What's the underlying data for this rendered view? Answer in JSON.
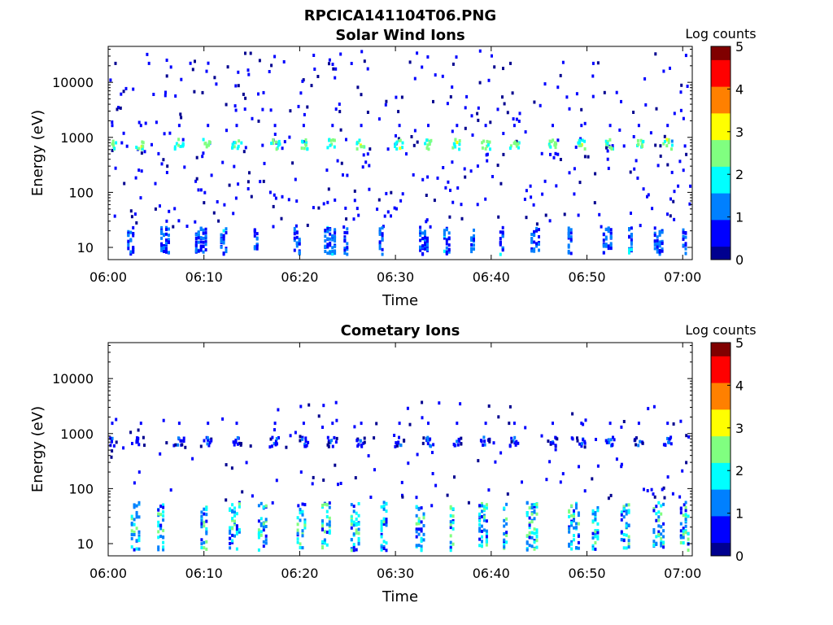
{
  "figure_title": "RPCICA141104T06.PNG",
  "colors": {
    "colormap": [
      "#00008f",
      "#0000ff",
      "#0080ff",
      "#00ffff",
      "#80ff80",
      "#ffff00",
      "#ff8000",
      "#ff0000",
      "#800000"
    ],
    "axes": "#000000",
    "background": "#ffffff"
  },
  "chart_data": [
    {
      "type": "heatmap",
      "title": "Solar Wind Ions",
      "xlabel": "Time",
      "ylabel": "Energy (eV)",
      "x_range": [
        "06:00",
        "07:01"
      ],
      "y_range": [
        6,
        45000
      ],
      "y_scale": "log",
      "x_ticks": [
        "06:00",
        "06:10",
        "06:20",
        "06:30",
        "06:40",
        "06:50",
        "07:00"
      ],
      "y_ticks": [
        "10",
        "100",
        "1000",
        "10000"
      ],
      "colorbar": {
        "label": "Log counts",
        "range": [
          0,
          5
        ],
        "ticks": [
          "0",
          "1",
          "2",
          "3",
          "4",
          "5"
        ]
      },
      "grid": false,
      "features": {
        "main_peak_energy_eV": 800,
        "main_peak_times": [
          "06:00",
          "06:03",
          "06:07",
          "06:10",
          "06:13",
          "06:17",
          "06:20",
          "06:23",
          "06:26",
          "06:30",
          "06:33",
          "06:36",
          "06:39",
          "06:42",
          "06:46",
          "06:49",
          "06:52",
          "06:55",
          "06:58"
        ],
        "main_peak_log_counts": 3.0,
        "low_energy_band_eV": [
          8,
          25
        ],
        "low_energy_log_counts": 1.0,
        "sparse_background_log_counts": 0.1
      }
    },
    {
      "type": "heatmap",
      "title": "Cometary Ions",
      "xlabel": "Time",
      "ylabel": "Energy (eV)",
      "x_range": [
        "06:00",
        "07:01"
      ],
      "y_range": [
        6,
        45000
      ],
      "y_scale": "log",
      "x_ticks": [
        "06:00",
        "06:10",
        "06:20",
        "06:30",
        "06:40",
        "06:50",
        "07:00"
      ],
      "y_ticks": [
        "10",
        "100",
        "1000",
        "10000"
      ],
      "colorbar": {
        "label": "Log counts",
        "range": [
          0,
          5
        ],
        "ticks": [
          "0",
          "1",
          "2",
          "3",
          "4",
          "5"
        ]
      },
      "grid": false,
      "features": {
        "main_peak_energy_eV": 750,
        "main_peak_times": [
          "06:00",
          "06:03",
          "06:07",
          "06:10",
          "06:13",
          "06:17",
          "06:20",
          "06:23",
          "06:26",
          "06:30",
          "06:33",
          "06:36",
          "06:39",
          "06:42",
          "06:46",
          "06:49",
          "06:52",
          "06:55",
          "06:58"
        ],
        "main_peak_log_counts": 1.4,
        "low_energy_band_eV": [
          8,
          60
        ],
        "low_energy_log_counts": 1.6,
        "sparse_background_log_counts": 0.1
      }
    }
  ]
}
